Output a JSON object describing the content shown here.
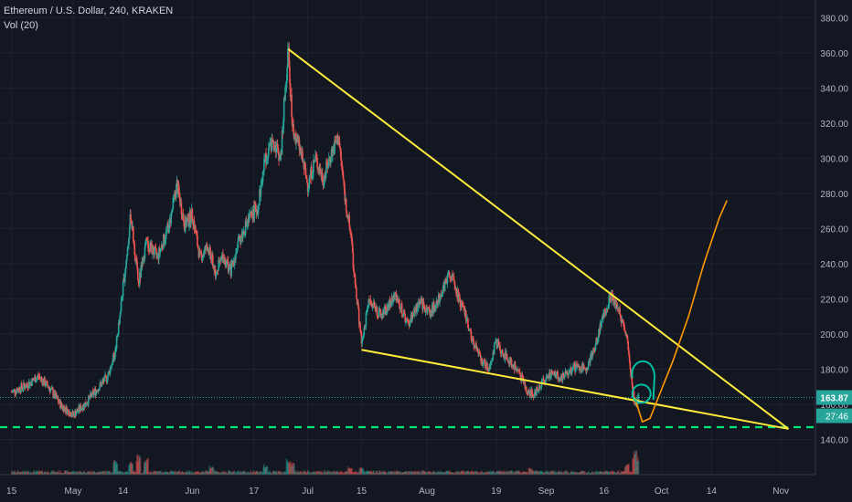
{
  "chart_data": {
    "type": "candlestick",
    "title": "Ethereum / U.S. Dollar, 240, KRAKEN",
    "volume_label": "Vol (20)",
    "grid": true,
    "legend": "top-left",
    "y_ticks": [
      140,
      160,
      180,
      200,
      220,
      240,
      260,
      280,
      300,
      320,
      340,
      360,
      380
    ],
    "y_tick_labels": [
      "140.00",
      "160.00",
      "180.00",
      "200.00",
      "220.00",
      "240.00",
      "260.00",
      "280.00",
      "300.00",
      "320.00",
      "340.00",
      "360.00",
      "380.00"
    ],
    "ylim": [
      120,
      390
    ],
    "x_ticks": [
      {
        "label": "15",
        "day": 0
      },
      {
        "label": "May",
        "day": 16
      },
      {
        "label": "14",
        "day": 29
      },
      {
        "label": "Jun",
        "day": 47
      },
      {
        "label": "17",
        "day": 63
      },
      {
        "label": "Jul",
        "day": 77
      },
      {
        "label": "15",
        "day": 91
      },
      {
        "label": "Aug",
        "day": 108
      },
      {
        "label": "19",
        "day": 126
      },
      {
        "label": "Sep",
        "day": 139
      },
      {
        "label": "16",
        "day": 154
      },
      {
        "label": "Oct",
        "day": 169
      },
      {
        "label": "14",
        "day": 182
      },
      {
        "label": "Nov",
        "day": 200
      }
    ],
    "xlim": [
      -3,
      209
    ],
    "last_price": {
      "value": 163.87,
      "label": "163.87",
      "color": "#26a69a"
    },
    "countdown": {
      "label": "27:46",
      "color": "#26a69a"
    },
    "price_path": [
      [
        0,
        167
      ],
      [
        4,
        171
      ],
      [
        7,
        176
      ],
      [
        10,
        169
      ],
      [
        13,
        159
      ],
      [
        16,
        154
      ],
      [
        19,
        160
      ],
      [
        22,
        168
      ],
      [
        25,
        176
      ],
      [
        27,
        190
      ],
      [
        28,
        208
      ],
      [
        30,
        245
      ],
      [
        31,
        268
      ],
      [
        33,
        228
      ],
      [
        35,
        252
      ],
      [
        38,
        244
      ],
      [
        41,
        262
      ],
      [
        43,
        285
      ],
      [
        45,
        262
      ],
      [
        47,
        268
      ],
      [
        49,
        243
      ],
      [
        51,
        250
      ],
      [
        53,
        235
      ],
      [
        55,
        244
      ],
      [
        57,
        236
      ],
      [
        59,
        252
      ],
      [
        61,
        262
      ],
      [
        63,
        270
      ],
      [
        64,
        272
      ],
      [
        66,
        300
      ],
      [
        68,
        310
      ],
      [
        70,
        300
      ],
      [
        71,
        335
      ],
      [
        72,
        362
      ],
      [
        73,
        318
      ],
      [
        75,
        305
      ],
      [
        77,
        285
      ],
      [
        79,
        300
      ],
      [
        81,
        288
      ],
      [
        83,
        302
      ],
      [
        85,
        312
      ],
      [
        86,
        292
      ],
      [
        87,
        272
      ],
      [
        88,
        262
      ],
      [
        89,
        235
      ],
      [
        90,
        215
      ],
      [
        91,
        195
      ],
      [
        93,
        220
      ],
      [
        96,
        210
      ],
      [
        100,
        222
      ],
      [
        103,
        205
      ],
      [
        106,
        218
      ],
      [
        109,
        212
      ],
      [
        112,
        225
      ],
      [
        114,
        235
      ],
      [
        116,
        222
      ],
      [
        118,
        210
      ],
      [
        120,
        196
      ],
      [
        122,
        185
      ],
      [
        124,
        180
      ],
      [
        126,
        195
      ],
      [
        128,
        188
      ],
      [
        130,
        183
      ],
      [
        132,
        178
      ],
      [
        134,
        168
      ],
      [
        136,
        166
      ],
      [
        138,
        172
      ],
      [
        140,
        178
      ],
      [
        143,
        175
      ],
      [
        146,
        181
      ],
      [
        149,
        180
      ],
      [
        151,
        188
      ],
      [
        152,
        195
      ],
      [
        154,
        212
      ],
      [
        156,
        222
      ],
      [
        158,
        212
      ],
      [
        160,
        200
      ],
      [
        161,
        178
      ],
      [
        162,
        158
      ],
      [
        163,
        163.87
      ]
    ],
    "volume_spikes": [
      [
        27,
        0.25
      ],
      [
        31,
        0.22
      ],
      [
        33,
        0.35
      ],
      [
        35,
        0.28
      ],
      [
        52,
        0.15
      ],
      [
        66,
        0.18
      ],
      [
        72,
        0.3
      ],
      [
        73,
        0.22
      ],
      [
        88,
        0.14
      ],
      [
        91,
        0.12
      ],
      [
        135,
        0.12
      ],
      [
        160,
        0.2
      ],
      [
        162,
        0.42
      ],
      [
        163,
        0.3
      ]
    ],
    "annotations": {
      "upper_trendline": {
        "from": [
          72,
          362
        ],
        "to": [
          202,
          146
        ],
        "color": "#ffeb3b"
      },
      "lower_trendline": {
        "from": [
          91,
          191
        ],
        "to": [
          202,
          146
        ],
        "color": "#ffeb3b"
      },
      "support_dashed": {
        "y": 147,
        "color": "#00e676"
      },
      "projection_path": {
        "points": [
          [
            162,
            164
          ],
          [
            164,
            150
          ],
          [
            166,
            152
          ],
          [
            168,
            163
          ],
          [
            172,
            185
          ],
          [
            176,
            210
          ],
          [
            180,
            240
          ],
          [
            184,
            266
          ],
          [
            186,
            276
          ]
        ],
        "color": "#ff9800"
      },
      "marker_circle": {
        "center": [
          164,
          166
        ],
        "color": "#00bfa5"
      },
      "marker_arc": {
        "center": [
          164,
          176
        ],
        "color": "#00bfa5"
      }
    }
  }
}
